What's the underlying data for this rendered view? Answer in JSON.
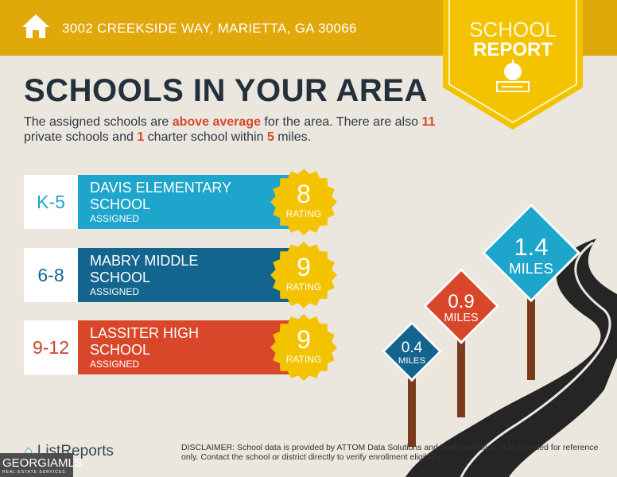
{
  "header": {
    "address": "3002 CREEKSIDE WAY, MARIETTA, GA 30066",
    "badge_line1": "SCHOOL",
    "badge_line2": "REPORT"
  },
  "title": "SCHOOLS IN YOUR AREA",
  "description": {
    "t1": "The assigned schools are ",
    "highlight": "above average",
    "t2": " for the area. There are also ",
    "private_count": "11",
    "t3": " private schools and ",
    "charter_count": "1",
    "t4": " charter school within ",
    "miles": "5",
    "t5": " miles."
  },
  "schools": [
    {
      "grade": "K-5",
      "name": "DAVIS ELEMENTARY SCHOOL",
      "status": "ASSIGNED",
      "rating": "8",
      "rating_label": "RATING",
      "color": "#1ea5cb",
      "grade_color": "#1ea5cb"
    },
    {
      "grade": "6-8",
      "name": "MABRY MIDDLE SCHOOL",
      "status": "ASSIGNED",
      "rating": "9",
      "rating_label": "RATING",
      "color": "#13658e",
      "grade_color": "#13658e"
    },
    {
      "grade": "9-12",
      "name": "LASSITER HIGH SCHOOL",
      "status": "ASSIGNED",
      "rating": "9",
      "rating_label": "RATING",
      "color": "#d9472b",
      "grade_color": "#c8442b"
    }
  ],
  "signs": [
    {
      "value": "0.4",
      "unit": "MILES",
      "color": "#13658e"
    },
    {
      "value": "0.9",
      "unit": "MILES",
      "color": "#d9472b"
    },
    {
      "value": "1.4",
      "unit": "MILES",
      "color": "#1ea5cb"
    }
  ],
  "footer": {
    "logo": "ListReports",
    "mls_main": "GEORGIAMLS",
    "mls_sub": "REAL ESTATE SERVICES",
    "disclaimer_label": "DISCLAIMER:",
    "disclaimer": " School data is provided by ATTOM Data Solutions and agent selection. It is intended for reference only. Contact the school or district directly to verify enrollment eligibility."
  }
}
